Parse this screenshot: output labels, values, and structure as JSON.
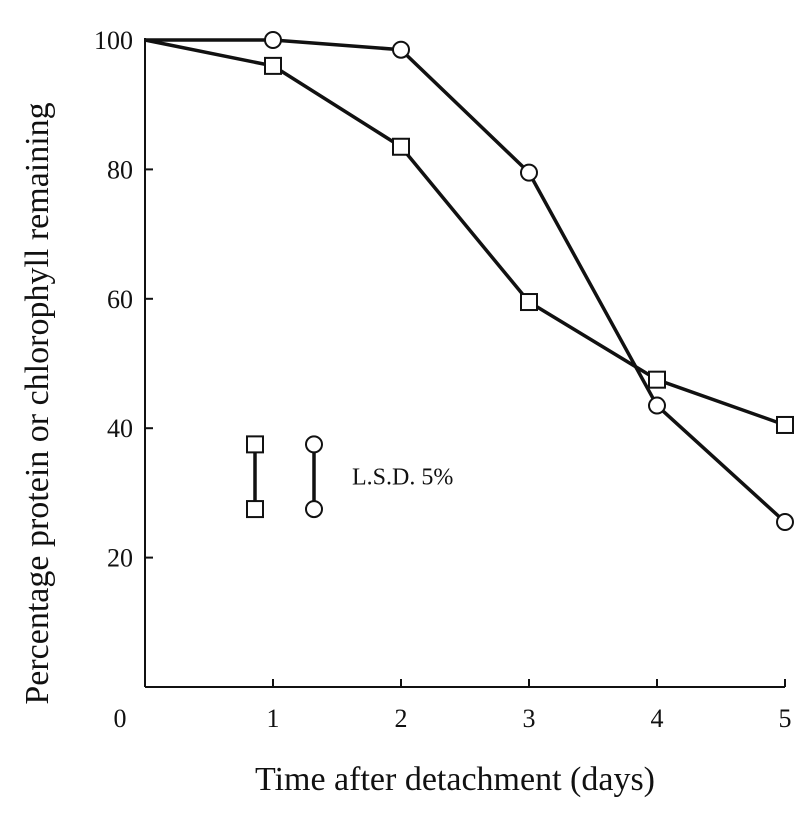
{
  "chart_data": {
    "type": "line",
    "xlabel": "Time after detachment (days)",
    "ylabel": "Percentage protein or chlorophyll remaining",
    "xlim": [
      0,
      5
    ],
    "ylim": [
      0,
      100
    ],
    "x_ticks": [
      "0",
      "1",
      "2",
      "3",
      "4",
      "5"
    ],
    "y_ticks": [
      "20",
      "40",
      "60",
      "80",
      "100"
    ],
    "grid": false,
    "series": [
      {
        "marker": "square",
        "x": [
          0,
          1,
          2,
          3,
          4,
          5
        ],
        "values": [
          100,
          96,
          83.5,
          59.5,
          47.5,
          40.5
        ]
      },
      {
        "marker": "circle",
        "x": [
          0,
          1,
          2,
          3,
          4,
          5
        ],
        "values": [
          100,
          100,
          98.5,
          79.5,
          43.5,
          25.5
        ]
      }
    ],
    "lsd": {
      "label": "L.S.D. 5%",
      "square_range": [
        27.5,
        37.5
      ],
      "circle_range": [
        27.5,
        37.5
      ]
    }
  }
}
